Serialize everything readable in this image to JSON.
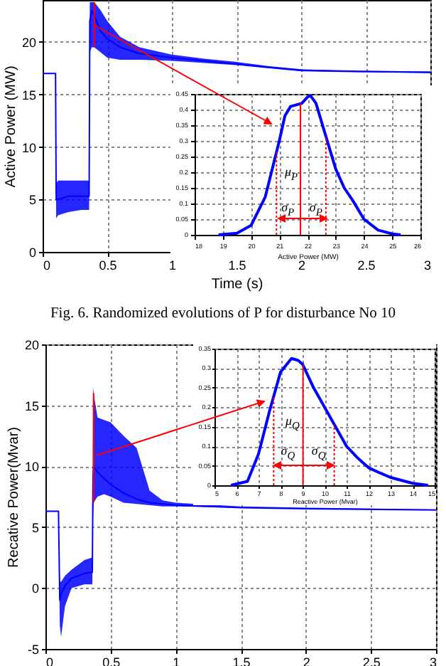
{
  "chart_data": [
    {
      "type": "line",
      "xlabel": "Time (s)",
      "ylabel": "Active Power (MW)",
      "xlim": [
        0,
        3
      ],
      "xticks": [
        0,
        0.5,
        1,
        1.5,
        2,
        2.5,
        3
      ],
      "ylim": [
        0,
        24
      ],
      "yticks": [
        0,
        5,
        10,
        15,
        20
      ],
      "grid": true,
      "series": [
        {
          "color": "#0000ff",
          "x": [
            0,
            0.1,
            0.105,
            0.12,
            0.2,
            0.3,
            0.36,
            0.365,
            0.38,
            0.4,
            0.45,
            0.5,
            0.6,
            0.75,
            1.0,
            1.25,
            1.5,
            1.75,
            2.0,
            2.5,
            3.0
          ],
          "values": [
            17,
            17,
            5,
            5,
            5.3,
            5.3,
            5.3,
            22,
            23,
            22.5,
            21,
            20.3,
            19.5,
            18.9,
            18.5,
            18.2,
            17.9,
            17.6,
            17.3,
            17.2,
            17.1
          ],
          "lower": [
            17,
            17,
            3.2,
            3.5,
            3.8,
            4,
            4,
            19,
            19.5,
            19.5,
            19,
            18.5,
            18.3,
            18.3,
            18.2,
            18,
            17.8,
            17.5,
            17.2,
            17.1,
            17.05
          ],
          "upper": [
            17,
            17,
            6.5,
            6.8,
            6.8,
            6.8,
            6.8,
            23.8,
            23.8,
            23.8,
            23,
            22,
            20.5,
            19.5,
            18.8,
            18.4,
            18.1,
            17.7,
            17.4,
            17.2,
            17.2
          ]
        }
      ],
      "ref_lines": [
        {
          "axis": "x",
          "value": 0.4,
          "color": "#ff0000"
        }
      ],
      "annotations": [
        "Fig. 6.  Randomized evolutions of P for disturbance No 10"
      ]
    },
    {
      "type": "line",
      "xlabel": "Active Power (MW)",
      "xlim": [
        18,
        26
      ],
      "xticks": [
        18,
        19,
        20,
        21,
        22,
        23,
        24,
        25,
        26
      ],
      "ylim": [
        0,
        0.45
      ],
      "yticks": [
        0,
        0.05,
        0.1,
        0.15,
        0.2,
        0.25,
        0.3,
        0.35,
        0.4,
        0.45
      ],
      "grid": true,
      "series": [
        {
          "color": "#0000ff",
          "x": [
            18.85,
            19.5,
            20,
            20.5,
            21,
            21.2,
            21.4,
            21.6,
            21.8,
            22,
            22.1,
            22.3,
            22.6,
            23,
            23.3,
            23.6,
            24,
            24.5,
            25,
            25.3
          ],
          "values": [
            0,
            0.005,
            0.03,
            0.12,
            0.3,
            0.38,
            0.41,
            0.415,
            0.42,
            0.44,
            0.445,
            0.42,
            0.33,
            0.21,
            0.15,
            0.11,
            0.05,
            0.015,
            0.003,
            0
          ]
        }
      ],
      "ref_lines": [
        {
          "axis": "x",
          "value": 21.75,
          "color": "#ff0000"
        },
        {
          "axis": "x",
          "value": 20.9,
          "color": "#ff0000",
          "line_style": "dotted"
        },
        {
          "axis": "x",
          "value": 22.65,
          "color": "#ff0000",
          "line_style": "dotted"
        }
      ],
      "annotations": [
        "μ$_{P}$",
        {
          "text": "σ$_{P}$",
          "x": 20.9,
          "y": 0.05
        },
        {
          "text": "σ$_{P}$",
          "x": 22.65,
          "y": 0.05
        }
      ]
    },
    {
      "type": "line",
      "ylabel": "Recative Power(Mvar)",
      "xlim": [
        0,
        3
      ],
      "xticks": [
        0,
        0.5,
        1,
        1.5,
        2,
        2.5,
        3
      ],
      "ylim": [
        -5,
        20
      ],
      "yticks": [
        -5,
        0,
        5,
        10,
        15,
        20
      ],
      "grid": true,
      "series": [
        {
          "color": "#0000ff",
          "x": [
            0,
            0.1,
            0.11,
            0.12,
            0.15,
            0.2,
            0.3,
            0.36,
            0.365,
            0.37,
            0.4,
            0.45,
            0.5,
            0.6,
            0.7,
            0.8,
            0.9,
            1.0,
            1.5,
            2.0,
            3.0
          ],
          "values": [
            6.3,
            6.3,
            -1,
            -0.5,
            0.2,
            0.8,
            1.2,
            1.3,
            9,
            10,
            9.5,
            9,
            8.5,
            7.8,
            7.3,
            7,
            6.9,
            6.8,
            6.6,
            6.5,
            6.4
          ],
          "lower": [
            6.3,
            6.3,
            -3,
            -4,
            -1.5,
            0,
            0.3,
            0.3,
            5.5,
            7,
            7.5,
            7.7,
            7.5,
            7,
            6.9,
            6.8,
            6.7,
            6.7,
            6.6,
            6.5,
            6.4
          ],
          "upper": [
            6.3,
            6.3,
            0.5,
            0.5,
            1,
            1.5,
            2.3,
            2.5,
            16.5,
            16,
            14,
            13.8,
            13.6,
            12.5,
            11.5,
            8,
            7.2,
            7,
            6.7,
            6.6,
            6.45
          ]
        }
      ],
      "ref_lines": [
        {
          "axis": "x",
          "value": 0.37,
          "color": "#ff0000"
        }
      ]
    },
    {
      "type": "line",
      "xlabel": "Reactive Power (Mvar)",
      "xlim": [
        5,
        15
      ],
      "xticks": [
        5,
        6,
        7,
        8,
        9,
        10,
        11,
        12,
        13,
        14,
        15
      ],
      "ylim": [
        0,
        0.35
      ],
      "yticks": [
        0,
        0.05,
        0.1,
        0.15,
        0.2,
        0.25,
        0.3,
        0.35
      ],
      "grid": true,
      "series": [
        {
          "color": "#0000ff",
          "x": [
            5.75,
            6.5,
            7,
            7.5,
            8,
            8.5,
            8.8,
            9,
            9.5,
            10,
            10.5,
            11,
            11.5,
            12,
            12.5,
            13,
            14,
            14.7
          ],
          "values": [
            0,
            0.01,
            0.08,
            0.19,
            0.29,
            0.325,
            0.32,
            0.31,
            0.25,
            0.2,
            0.15,
            0.1,
            0.07,
            0.045,
            0.032,
            0.02,
            0.005,
            0
          ]
        }
      ],
      "ref_lines": [
        {
          "axis": "x",
          "value": 9.02,
          "color": "#ff0000"
        },
        {
          "axis": "x",
          "value": 7.69,
          "color": "#ff0000",
          "line_style": "dotted"
        },
        {
          "axis": "x",
          "value": 10.44,
          "color": "#ff0000",
          "line_style": "dotted"
        }
      ],
      "annotations": [
        "μ$_{Q}$",
        {
          "text": "σ$_{Q}$",
          "x": 7.69,
          "y": 0.05
        },
        {
          "text": "σ$_{Q}$",
          "x": 10.44,
          "y": 0.05
        }
      ]
    }
  ]
}
